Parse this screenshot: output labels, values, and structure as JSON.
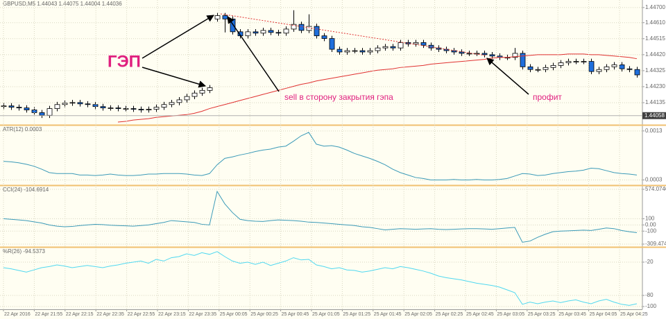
{
  "chart_data": [
    {
      "type": "candlestick",
      "title": "GBPUSD,M5  1.44043 1.44075 1.44004 1.44036",
      "open": [
        1.44112,
        1.44116,
        1.44108,
        1.44104,
        1.44092,
        1.44076,
        1.4406,
        1.441,
        1.44124,
        1.44132,
        1.44136,
        1.44128,
        1.44124,
        1.44112,
        1.44104,
        1.44104,
        1.441,
        1.441,
        1.44096,
        1.44092,
        1.44096,
        1.44108,
        1.44124,
        1.44136,
        1.44152,
        1.44172,
        1.44192,
        1.44208,
        1.44632,
        1.44652,
        1.44632,
        1.44556,
        1.44532,
        1.44556,
        1.44548,
        1.44564,
        1.44552,
        1.44548,
        1.44572,
        1.446,
        1.44564,
        1.44588,
        1.44532,
        1.44516,
        1.44452,
        1.44436,
        1.44444,
        1.44444,
        1.44436,
        1.44444,
        1.4446,
        1.44468,
        1.4446,
        1.44492,
        1.44484,
        1.44492,
        1.44476,
        1.4446,
        1.44452,
        1.44444,
        1.44436,
        1.44428,
        1.44428,
        1.44428,
        1.4442,
        1.44412,
        1.44404,
        1.44404,
        1.44428,
        1.44348,
        1.44332,
        1.44332,
        1.44344,
        1.44356,
        1.44372,
        1.4438,
        1.4438,
        1.4438,
        1.4432,
        1.44332,
        1.44348,
        1.4436,
        1.44336,
        1.44332
      ],
      "high": [
        1.44132,
        1.44132,
        1.44124,
        1.4412,
        1.44108,
        1.44092,
        1.44116,
        1.4414,
        1.44148,
        1.44152,
        1.44152,
        1.44144,
        1.4414,
        1.44128,
        1.4412,
        1.4412,
        1.44116,
        1.44116,
        1.44112,
        1.44112,
        1.44124,
        1.4414,
        1.44152,
        1.44168,
        1.44188,
        1.44208,
        1.44224,
        1.4424,
        1.44668,
        1.44668,
        1.44648,
        1.44572,
        1.44572,
        1.44572,
        1.4458,
        1.4458,
        1.44568,
        1.44588,
        1.44684,
        1.44616,
        1.4466,
        1.44604,
        1.44548,
        1.44532,
        1.44468,
        1.4446,
        1.4446,
        1.4446,
        1.4446,
        1.44476,
        1.44484,
        1.44484,
        1.44508,
        1.44508,
        1.44508,
        1.44508,
        1.44492,
        1.44476,
        1.44468,
        1.4446,
        1.44452,
        1.44444,
        1.44444,
        1.44444,
        1.44436,
        1.44428,
        1.4442,
        1.4446,
        1.44444,
        1.44364,
        1.44348,
        1.4436,
        1.44372,
        1.44388,
        1.44396,
        1.44396,
        1.44396,
        1.44396,
        1.44348,
        1.44364,
        1.44376,
        1.44376,
        1.44352,
        1.44348
      ],
      "low": [
        1.44096,
        1.44092,
        1.44088,
        1.44076,
        1.4406,
        1.44044,
        1.44044,
        1.44084,
        1.44108,
        1.44116,
        1.44112,
        1.44108,
        1.44096,
        1.44088,
        1.44088,
        1.44084,
        1.44084,
        1.4408,
        1.44076,
        1.44076,
        1.4408,
        1.44092,
        1.44108,
        1.4412,
        1.44136,
        1.44156,
        1.44176,
        1.44192,
        1.44616,
        1.44552,
        1.4454,
        1.44516,
        1.44516,
        1.44532,
        1.44532,
        1.44536,
        1.44532,
        1.44532,
        1.44556,
        1.44548,
        1.44548,
        1.44516,
        1.445,
        1.44436,
        1.4442,
        1.4442,
        1.44428,
        1.4442,
        1.4442,
        1.44428,
        1.44444,
        1.44444,
        1.44444,
        1.44468,
        1.44468,
        1.4446,
        1.44444,
        1.44436,
        1.44428,
        1.4442,
        1.44412,
        1.44412,
        1.44412,
        1.44404,
        1.44396,
        1.44388,
        1.44388,
        1.44388,
        1.44332,
        1.44316,
        1.44316,
        1.44316,
        1.44328,
        1.4434,
        1.44356,
        1.44364,
        1.44364,
        1.44304,
        1.44304,
        1.44316,
        1.44332,
        1.4432,
        1.44316,
        1.44284
      ],
      "close": [
        1.44116,
        1.44108,
        1.44104,
        1.44092,
        1.44076,
        1.4406,
        1.441,
        1.44124,
        1.44132,
        1.44136,
        1.44128,
        1.44124,
        1.44112,
        1.44104,
        1.44104,
        1.441,
        1.441,
        1.44096,
        1.44092,
        1.44096,
        1.44108,
        1.44124,
        1.44136,
        1.44152,
        1.44172,
        1.44192,
        1.44208,
        1.44224,
        1.44652,
        1.44632,
        1.44556,
        1.44532,
        1.44556,
        1.44548,
        1.44564,
        1.44552,
        1.44548,
        1.44572,
        1.446,
        1.44564,
        1.44588,
        1.44532,
        1.44516,
        1.44452,
        1.44436,
        1.44444,
        1.44444,
        1.44436,
        1.44444,
        1.4446,
        1.44468,
        1.4446,
        1.44492,
        1.44484,
        1.44492,
        1.44476,
        1.4446,
        1.44452,
        1.44444,
        1.44436,
        1.44428,
        1.44428,
        1.44428,
        1.4442,
        1.44412,
        1.44404,
        1.44404,
        1.44428,
        1.44348,
        1.44332,
        1.44332,
        1.44344,
        1.44356,
        1.44372,
        1.4438,
        1.4438,
        1.4438,
        1.4432,
        1.44332,
        1.44348,
        1.4436,
        1.44336,
        1.44332,
        1.443
      ],
      "up_color": "#ffffff",
      "down_color": "#1f6fdc",
      "overlay": {
        "color": "#e03030",
        "values": [
          null,
          null,
          null,
          null,
          null,
          null,
          null,
          null,
          null,
          null,
          null,
          null,
          null,
          null,
          null,
          1.4402,
          1.44024,
          1.44032,
          1.44036,
          1.4404,
          1.44048,
          1.44052,
          1.44056,
          1.4406,
          1.44064,
          1.44072,
          1.44084,
          1.441,
          1.44112,
          1.44124,
          1.44136,
          1.44148,
          1.4416,
          1.44172,
          1.44184,
          1.44196,
          1.44208,
          1.4422,
          1.44232,
          1.44244,
          1.44252,
          1.44264,
          1.44272,
          1.4428,
          1.44288,
          1.44296,
          1.44304,
          1.44312,
          1.4432,
          1.44328,
          1.44332,
          1.44336,
          1.44344,
          1.44348,
          1.44352,
          1.44356,
          1.44364,
          1.44368,
          1.44372,
          1.44376,
          1.4438,
          1.44384,
          1.44388,
          1.44392,
          1.444,
          1.44404,
          1.44404,
          1.44408,
          1.44412,
          1.44416,
          1.4442,
          1.4442,
          1.4442,
          1.4442,
          1.44424,
          1.44424,
          1.44424,
          1.4442,
          1.4442,
          1.44416,
          1.44412,
          1.44408,
          1.44404,
          1.44396
        ]
      },
      "last_price": {
        "value": 1.44058,
        "label": "1.44058"
      },
      "ylim": [
        1.4402,
        1.4472
      ],
      "yticks": [
        {
          "value": 1.447,
          "label": "1.44700"
        },
        {
          "value": 1.4461,
          "label": "1.44610"
        },
        {
          "value": 1.44515,
          "label": "1.44515"
        },
        {
          "value": 1.4442,
          "label": "1.44420"
        },
        {
          "value": 1.44325,
          "label": "1.44325"
        },
        {
          "value": 1.4423,
          "label": "1.44230"
        },
        {
          "value": 1.44135,
          "label": "1.44135"
        }
      ],
      "grid": true,
      "x_labels": [
        "22 Apr 2016",
        "22 Apr 21:55",
        "22 Apr 22:15",
        "22 Apr 22:35",
        "22 Apr 22:55",
        "22 Apr 23:15",
        "22 Apr 23:35",
        "25 Apr 00:05",
        "25 Apr 00:25",
        "25 Apr 00:45",
        "25 Apr 01:05",
        "25 Apr 01:25",
        "25 Apr 01:45",
        "25 Apr 02:05",
        "25 Apr 02:25",
        "25 Apr 02:45",
        "25 Apr 03:05",
        "25 Apr 03:25",
        "25 Apr 03:45",
        "25 Apr 04:05",
        "25 Apr 04:25"
      ],
      "annotations": [
        "ГЭП",
        "sell в сторону закрытия гэпа",
        "профит"
      ]
    },
    {
      "type": "line",
      "title": "ATR(12) 0.0003",
      "color": "#3a9ab8",
      "values": [
        0.00068,
        0.00067,
        0.00065,
        0.00062,
        0.00058,
        0.00052,
        0.00045,
        0.00043,
        0.00043,
        0.00043,
        0.0004,
        0.0004,
        0.00039,
        0.0004,
        0.00042,
        0.0004,
        0.00039,
        0.00039,
        0.0004,
        0.00042,
        0.00042,
        0.00043,
        0.00043,
        0.00043,
        0.00042,
        0.0004,
        0.00039,
        0.00043,
        0.00061,
        0.00074,
        0.00077,
        0.00081,
        0.00084,
        0.00088,
        0.00091,
        0.00093,
        0.00097,
        0.00099,
        0.00109,
        0.0012,
        0.00127,
        0.00103,
        0.00099,
        0.001,
        0.00097,
        0.00091,
        0.00084,
        0.00079,
        0.00074,
        0.00068,
        0.00061,
        0.00052,
        0.00045,
        0.0004,
        0.00035,
        0.00033,
        0.0003,
        0.0003,
        0.0003,
        0.00031,
        0.0003,
        0.0003,
        0.00031,
        0.0003,
        0.0003,
        0.00031,
        0.00033,
        0.00038,
        0.00043,
        0.00042,
        0.00039,
        0.0004,
        0.00043,
        0.00045,
        0.00047,
        0.00048,
        0.0005,
        0.00054,
        0.00053,
        0.00049,
        0.00045,
        0.00043,
        0.00042,
        0.0004
      ],
      "ylim": [
        0.00025,
        0.00134
      ],
      "yticks": [
        0.0013,
        0.0003
      ]
    },
    {
      "type": "line",
      "title": "CCI(24) -104.6914",
      "color": "#3a9ab8",
      "values": [
        100,
        90,
        80,
        70,
        50,
        30,
        0,
        -20,
        -30,
        -25,
        -10,
        0,
        10,
        5,
        -5,
        -10,
        -15,
        -20,
        -10,
        0,
        20,
        40,
        70,
        60,
        50,
        40,
        10,
        0,
        540,
        340,
        200,
        90,
        70,
        60,
        55,
        70,
        80,
        75,
        70,
        60,
        45,
        40,
        30,
        20,
        10,
        0,
        -10,
        -30,
        -40,
        -60,
        -80,
        -70,
        -60,
        -65,
        -70,
        -65,
        -60,
        -70,
        -75,
        -70,
        -65,
        -60,
        -60,
        -65,
        -70,
        -60,
        -50,
        -40,
        -280,
        -260,
        -200,
        -150,
        -110,
        -100,
        -95,
        -90,
        -85,
        -90,
        -70,
        -50,
        -60,
        -90,
        -110,
        -125
      ],
      "ylim": [
        -309.4746,
        574.0746
      ],
      "yticks": [
        574.0746,
        100,
        {
          "value": 0,
          "label": "0.00"
        },
        -100,
        -309.4746
      ]
    },
    {
      "type": "line",
      "title": "%R(26) -94.5373",
      "color": "#4fd8f0",
      "values": [
        -30,
        -32,
        -35,
        -38,
        -34,
        -30,
        -28,
        -25,
        -27,
        -30,
        -28,
        -26,
        -28,
        -30,
        -27,
        -25,
        -22,
        -20,
        -18,
        -22,
        -15,
        -18,
        -12,
        -10,
        -5,
        -8,
        -3,
        -6,
        -1,
        -10,
        -18,
        -22,
        -20,
        -24,
        -20,
        -26,
        -22,
        -18,
        -12,
        -16,
        -15,
        -25,
        -28,
        -32,
        -30,
        -34,
        -35,
        -38,
        -36,
        -33,
        -30,
        -32,
        -28,
        -30,
        -33,
        -36,
        -40,
        -45,
        -48,
        -50,
        -52,
        -55,
        -58,
        -60,
        -62,
        -65,
        -70,
        -75,
        -96,
        -92,
        -95,
        -92,
        -90,
        -93,
        -90,
        -88,
        -92,
        -95,
        -90,
        -87,
        -92,
        -96,
        -98,
        -95
      ],
      "ylim": [
        -100,
        0
      ],
      "yticks": [
        -20,
        -80,
        -100
      ]
    }
  ]
}
